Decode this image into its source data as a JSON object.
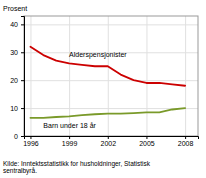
{
  "chart_data": {
    "type": "line",
    "ylabel": "Prosent",
    "source": "Kilde: Inntektsstatistikk for husholdninger, Statistisk\nsentralbyrå.",
    "x": [
      1996,
      1997,
      1998,
      1999,
      2000,
      2001,
      2002,
      2003,
      2004,
      2005,
      2006,
      2007,
      2008
    ],
    "series": [
      {
        "name": "Alderspensjonister",
        "color": "#cc0000",
        "values": [
          32,
          29,
          27,
          26,
          25.5,
          25,
          25,
          22,
          20,
          19,
          19,
          18.5,
          18
        ]
      },
      {
        "name": "Barn under 18 år",
        "color": "#7a9a2a",
        "values": [
          6.5,
          6.5,
          6.8,
          7.0,
          7.5,
          7.8,
          8.0,
          8.0,
          8.2,
          8.5,
          8.5,
          9.5,
          10
        ]
      }
    ],
    "xlim": [
      1995.5,
      2009.0
    ],
    "xticks": [
      1996,
      1999,
      2002,
      2005,
      2008
    ],
    "ylim": [
      0,
      43
    ],
    "yticks": [
      0,
      10,
      20,
      30,
      40
    ],
    "grid": true
  }
}
